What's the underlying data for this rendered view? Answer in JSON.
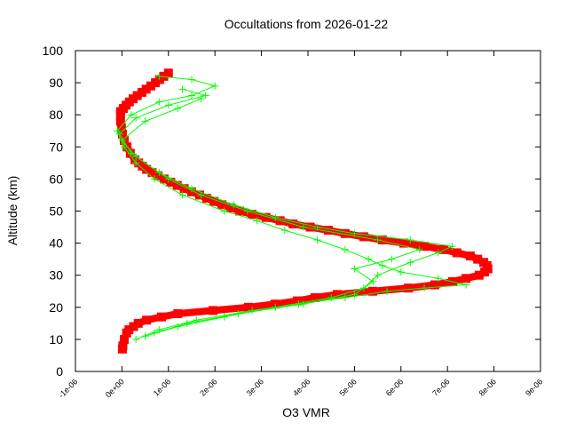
{
  "chart_data": {
    "type": "line",
    "title": "Occultations from 2026-01-22",
    "xlabel": "O3 VMR",
    "ylabel": "Altitude (km)",
    "xlim": [
      -1e-06,
      9e-06
    ],
    "ylim": [
      0,
      100
    ],
    "xticks": [
      "-1e-06",
      "0e+00",
      "1e-06",
      "2e-06",
      "3e-06",
      "4e-06",
      "5e-06",
      "6e-06",
      "7e-06",
      "8e-06",
      "9e-06"
    ],
    "yticks": [
      "0",
      "10",
      "20",
      "30",
      "40",
      "50",
      "60",
      "70",
      "80",
      "90",
      "100"
    ],
    "grid": false,
    "colors": {
      "red": "#ff0000",
      "green": "#00ff00"
    },
    "series": [
      {
        "color": "#ff0000",
        "marker": "square",
        "profiles": [
          [
            [
              7,
              1e-08
            ],
            [
              8,
              2e-08
            ],
            [
              10,
              5e-08
            ],
            [
              12,
              1e-07
            ],
            [
              13,
              1.5e-07
            ],
            [
              14,
              2.5e-07
            ],
            [
              15,
              3.5e-07
            ],
            [
              16,
              5.3e-07
            ],
            [
              17,
              8.5e-07
            ],
            [
              18,
              1.2e-06
            ],
            [
              19,
              1.96e-06
            ],
            [
              20,
              2.72e-06
            ],
            [
              21,
              3.29e-06
            ],
            [
              22,
              3.77e-06
            ],
            [
              23,
              4.15e-06
            ],
            [
              24,
              4.63e-06
            ],
            [
              25,
              5.39e-06
            ],
            [
              26,
              6.16e-06
            ],
            [
              27,
              6.73e-06
            ],
            [
              28,
              7.11e-06
            ],
            [
              29,
              7.4e-06
            ],
            [
              30,
              7.68e-06
            ],
            [
              31,
              7.8e-06
            ],
            [
              32,
              7.87e-06
            ],
            [
              33,
              7.85e-06
            ],
            [
              34,
              7.78e-06
            ],
            [
              35,
              7.65e-06
            ],
            [
              36,
              7.49e-06
            ],
            [
              37,
              7.2e-06
            ],
            [
              38,
              6.92e-06
            ],
            [
              39,
              6.5e-06
            ],
            [
              40,
              6.06e-06
            ],
            [
              41,
              5.6e-06
            ],
            [
              42,
              5.2e-06
            ],
            [
              43,
              4.8e-06
            ],
            [
              44,
              4.44e-06
            ],
            [
              45,
              4.05e-06
            ],
            [
              46,
              3.68e-06
            ],
            [
              47,
              3.4e-06
            ],
            [
              48,
              3.1e-06
            ],
            [
              49,
              2.8e-06
            ],
            [
              50,
              2.53e-06
            ],
            [
              51,
              2.34e-06
            ],
            [
              52,
              2.15e-06
            ],
            [
              53,
              1.98e-06
            ],
            [
              54,
              1.82e-06
            ],
            [
              55,
              1.67e-06
            ],
            [
              56,
              1.5e-06
            ],
            [
              57,
              1.34e-06
            ],
            [
              58,
              1.19e-06
            ],
            [
              59,
              1.05e-06
            ],
            [
              60,
              9.1e-07
            ],
            [
              61,
              7.8e-07
            ],
            [
              62,
              6.5e-07
            ],
            [
              63,
              5.3e-07
            ],
            [
              64,
              4.4e-07
            ],
            [
              65,
              3.6e-07
            ],
            [
              66,
              2.8e-07
            ],
            [
              68,
              1.8e-07
            ],
            [
              70,
              1.1e-07
            ],
            [
              72,
              5e-08
            ],
            [
              74,
              1e-08
            ],
            [
              76,
              -1e-08
            ],
            [
              78,
              -3e-08
            ],
            [
              80,
              -3e-08
            ],
            [
              81,
              -3e-08
            ],
            [
              82,
              3e-08
            ],
            [
              83,
              9e-08
            ],
            [
              84,
              1.6e-07
            ],
            [
              85,
              2.4e-07
            ],
            [
              86,
              3.3e-07
            ],
            [
              87,
              4.3e-07
            ],
            [
              88,
              5.2e-07
            ],
            [
              89,
              6.2e-07
            ],
            [
              90,
              7.2e-07
            ],
            [
              91,
              8.1e-07
            ],
            [
              92,
              9e-07
            ],
            [
              93,
              1e-06
            ]
          ]
        ]
      },
      {
        "color": "#00ff00",
        "marker": "plus",
        "profiles": [
          [
            [
              10,
              3e-07
            ],
            [
              13,
              8e-07
            ],
            [
              16,
              1.6e-06
            ],
            [
              19,
              2.8e-06
            ],
            [
              21,
              3.8e-06
            ],
            [
              23,
              4.8e-06
            ],
            [
              25,
              5.7e-06
            ],
            [
              26,
              6.5e-06
            ],
            [
              27,
              7.4e-06
            ],
            [
              29,
              6.8e-06
            ],
            [
              31,
              6e-06
            ],
            [
              33,
              5.6e-06
            ],
            [
              35,
              5.3e-06
            ],
            [
              38,
              4.8e-06
            ],
            [
              41,
              4.2e-06
            ],
            [
              44,
              3.5e-06
            ],
            [
              47,
              2.9e-06
            ],
            [
              50,
              2.2e-06
            ],
            [
              55,
              1.3e-06
            ],
            [
              60,
              7e-07
            ],
            [
              65,
              3e-07
            ],
            [
              70,
              5e-08
            ],
            [
              75,
              -1e-07
            ],
            [
              80,
              2e-07
            ],
            [
              84,
              8e-07
            ],
            [
              86,
              1.5e-06
            ],
            [
              89,
              2e-06
            ],
            [
              91,
              1.5e-06
            ],
            [
              92,
              8e-07
            ]
          ],
          [
            [
              11,
              5e-07
            ],
            [
              14,
              1.2e-06
            ],
            [
              17,
              2.2e-06
            ],
            [
              20,
              3.3e-06
            ],
            [
              23,
              4.5e-06
            ],
            [
              26,
              5.2e-06
            ],
            [
              30,
              5.5e-06
            ],
            [
              34,
              6.2e-06
            ],
            [
              37,
              6.8e-06
            ],
            [
              39,
              7.1e-06
            ],
            [
              41,
              6.2e-06
            ],
            [
              43,
              5e-06
            ],
            [
              45,
              4.2e-06
            ],
            [
              48,
              3.3e-06
            ],
            [
              52,
              2.4e-06
            ],
            [
              57,
              1.5e-06
            ],
            [
              62,
              8e-07
            ],
            [
              68,
              2e-07
            ],
            [
              74,
              -5e-08
            ],
            [
              79,
              3e-07
            ],
            [
              83,
              1e-06
            ],
            [
              86,
              1.8e-06
            ],
            [
              88,
              1.3e-06
            ]
          ],
          [
            [
              12,
              7e-07
            ],
            [
              15,
              1.4e-06
            ],
            [
              18,
              2.5e-06
            ],
            [
              21,
              3.9e-06
            ],
            [
              24,
              5e-06
            ],
            [
              28,
              5.4e-06
            ],
            [
              32,
              5e-06
            ],
            [
              35,
              5.8e-06
            ],
            [
              38,
              6.4e-06
            ],
            [
              41,
              5.5e-06
            ],
            [
              45,
              3.9e-06
            ],
            [
              50,
              2.7e-06
            ],
            [
              55,
              1.7e-06
            ],
            [
              60,
              1e-06
            ],
            [
              67,
              3e-07
            ],
            [
              72,
              0.0
            ],
            [
              78,
              5e-07
            ],
            [
              82,
              1.2e-06
            ],
            [
              85,
              1.7e-06
            ]
          ]
        ]
      }
    ]
  }
}
